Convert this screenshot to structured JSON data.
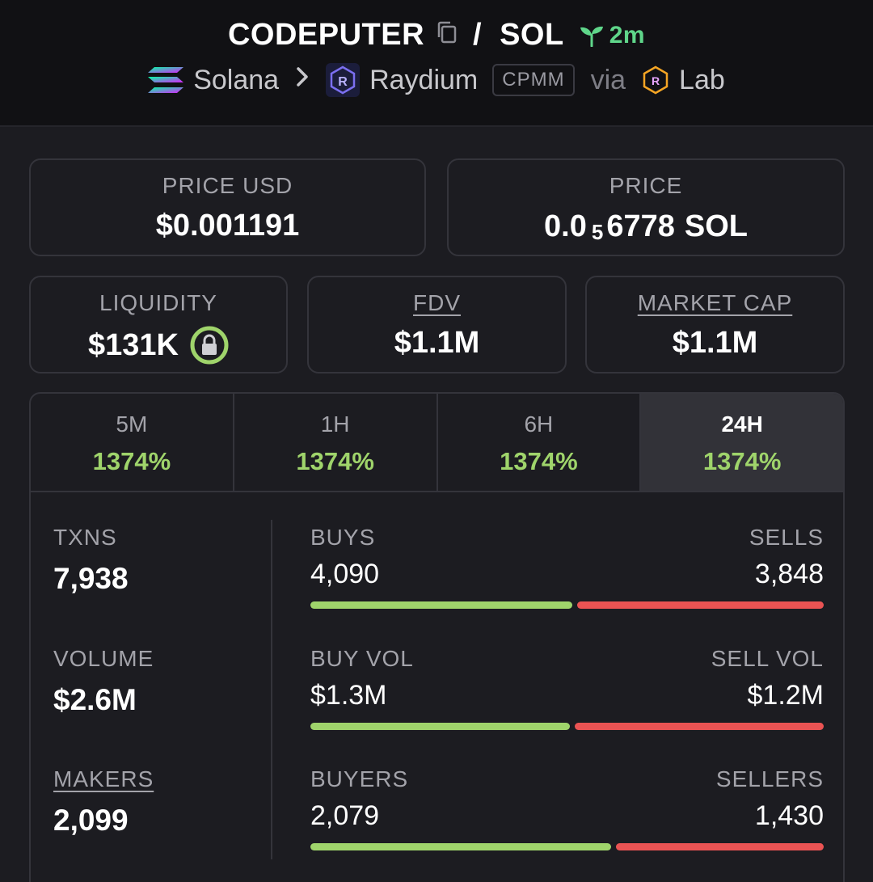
{
  "header": {
    "token": "CODEPUTER",
    "separator": "/",
    "quote": "SOL",
    "age": "2m",
    "chain": "Solana",
    "dex": "Raydium",
    "pool_type": "CPMM",
    "via": "via",
    "launchpad": "Lab"
  },
  "price_usd": {
    "label": "PRICE USD",
    "value": "$0.001191"
  },
  "price": {
    "label": "PRICE",
    "prefix": "0.0",
    "zeros": "5",
    "digits": "6778",
    "unit": "SOL"
  },
  "liquidity": {
    "label": "LIQUIDITY",
    "value": "$131K"
  },
  "fdv": {
    "label": "FDV",
    "value": "$1.1M"
  },
  "market_cap": {
    "label": "MARKET CAP",
    "value": "$1.1M"
  },
  "tabs": [
    {
      "label": "5M",
      "value": "1374%"
    },
    {
      "label": "1H",
      "value": "1374%"
    },
    {
      "label": "6H",
      "value": "1374%"
    },
    {
      "label": "24H",
      "value": "1374%",
      "active": true
    }
  ],
  "txns": {
    "label": "TXNS",
    "value": "7,938"
  },
  "volume": {
    "label": "VOLUME",
    "value": "$2.6M"
  },
  "makers": {
    "label": "MAKERS",
    "value": "2,099"
  },
  "buys_sells": {
    "left_label": "BUYS",
    "left_value": "4,090",
    "right_label": "SELLS",
    "right_value": "3,848",
    "buy_fraction": 0.515
  },
  "vol_split": {
    "left_label": "BUY VOL",
    "left_value": "$1.3M",
    "right_label": "SELL VOL",
    "right_value": "$1.2M",
    "buy_fraction": 0.51
  },
  "buyers_sellers": {
    "left_label": "BUYERS",
    "left_value": "2,079",
    "right_label": "SELLERS",
    "right_value": "1,430",
    "buy_fraction": 0.592
  },
  "colors": {
    "positive": "#9fd46b",
    "negative": "#ea5353",
    "age": "#5fd68a"
  }
}
